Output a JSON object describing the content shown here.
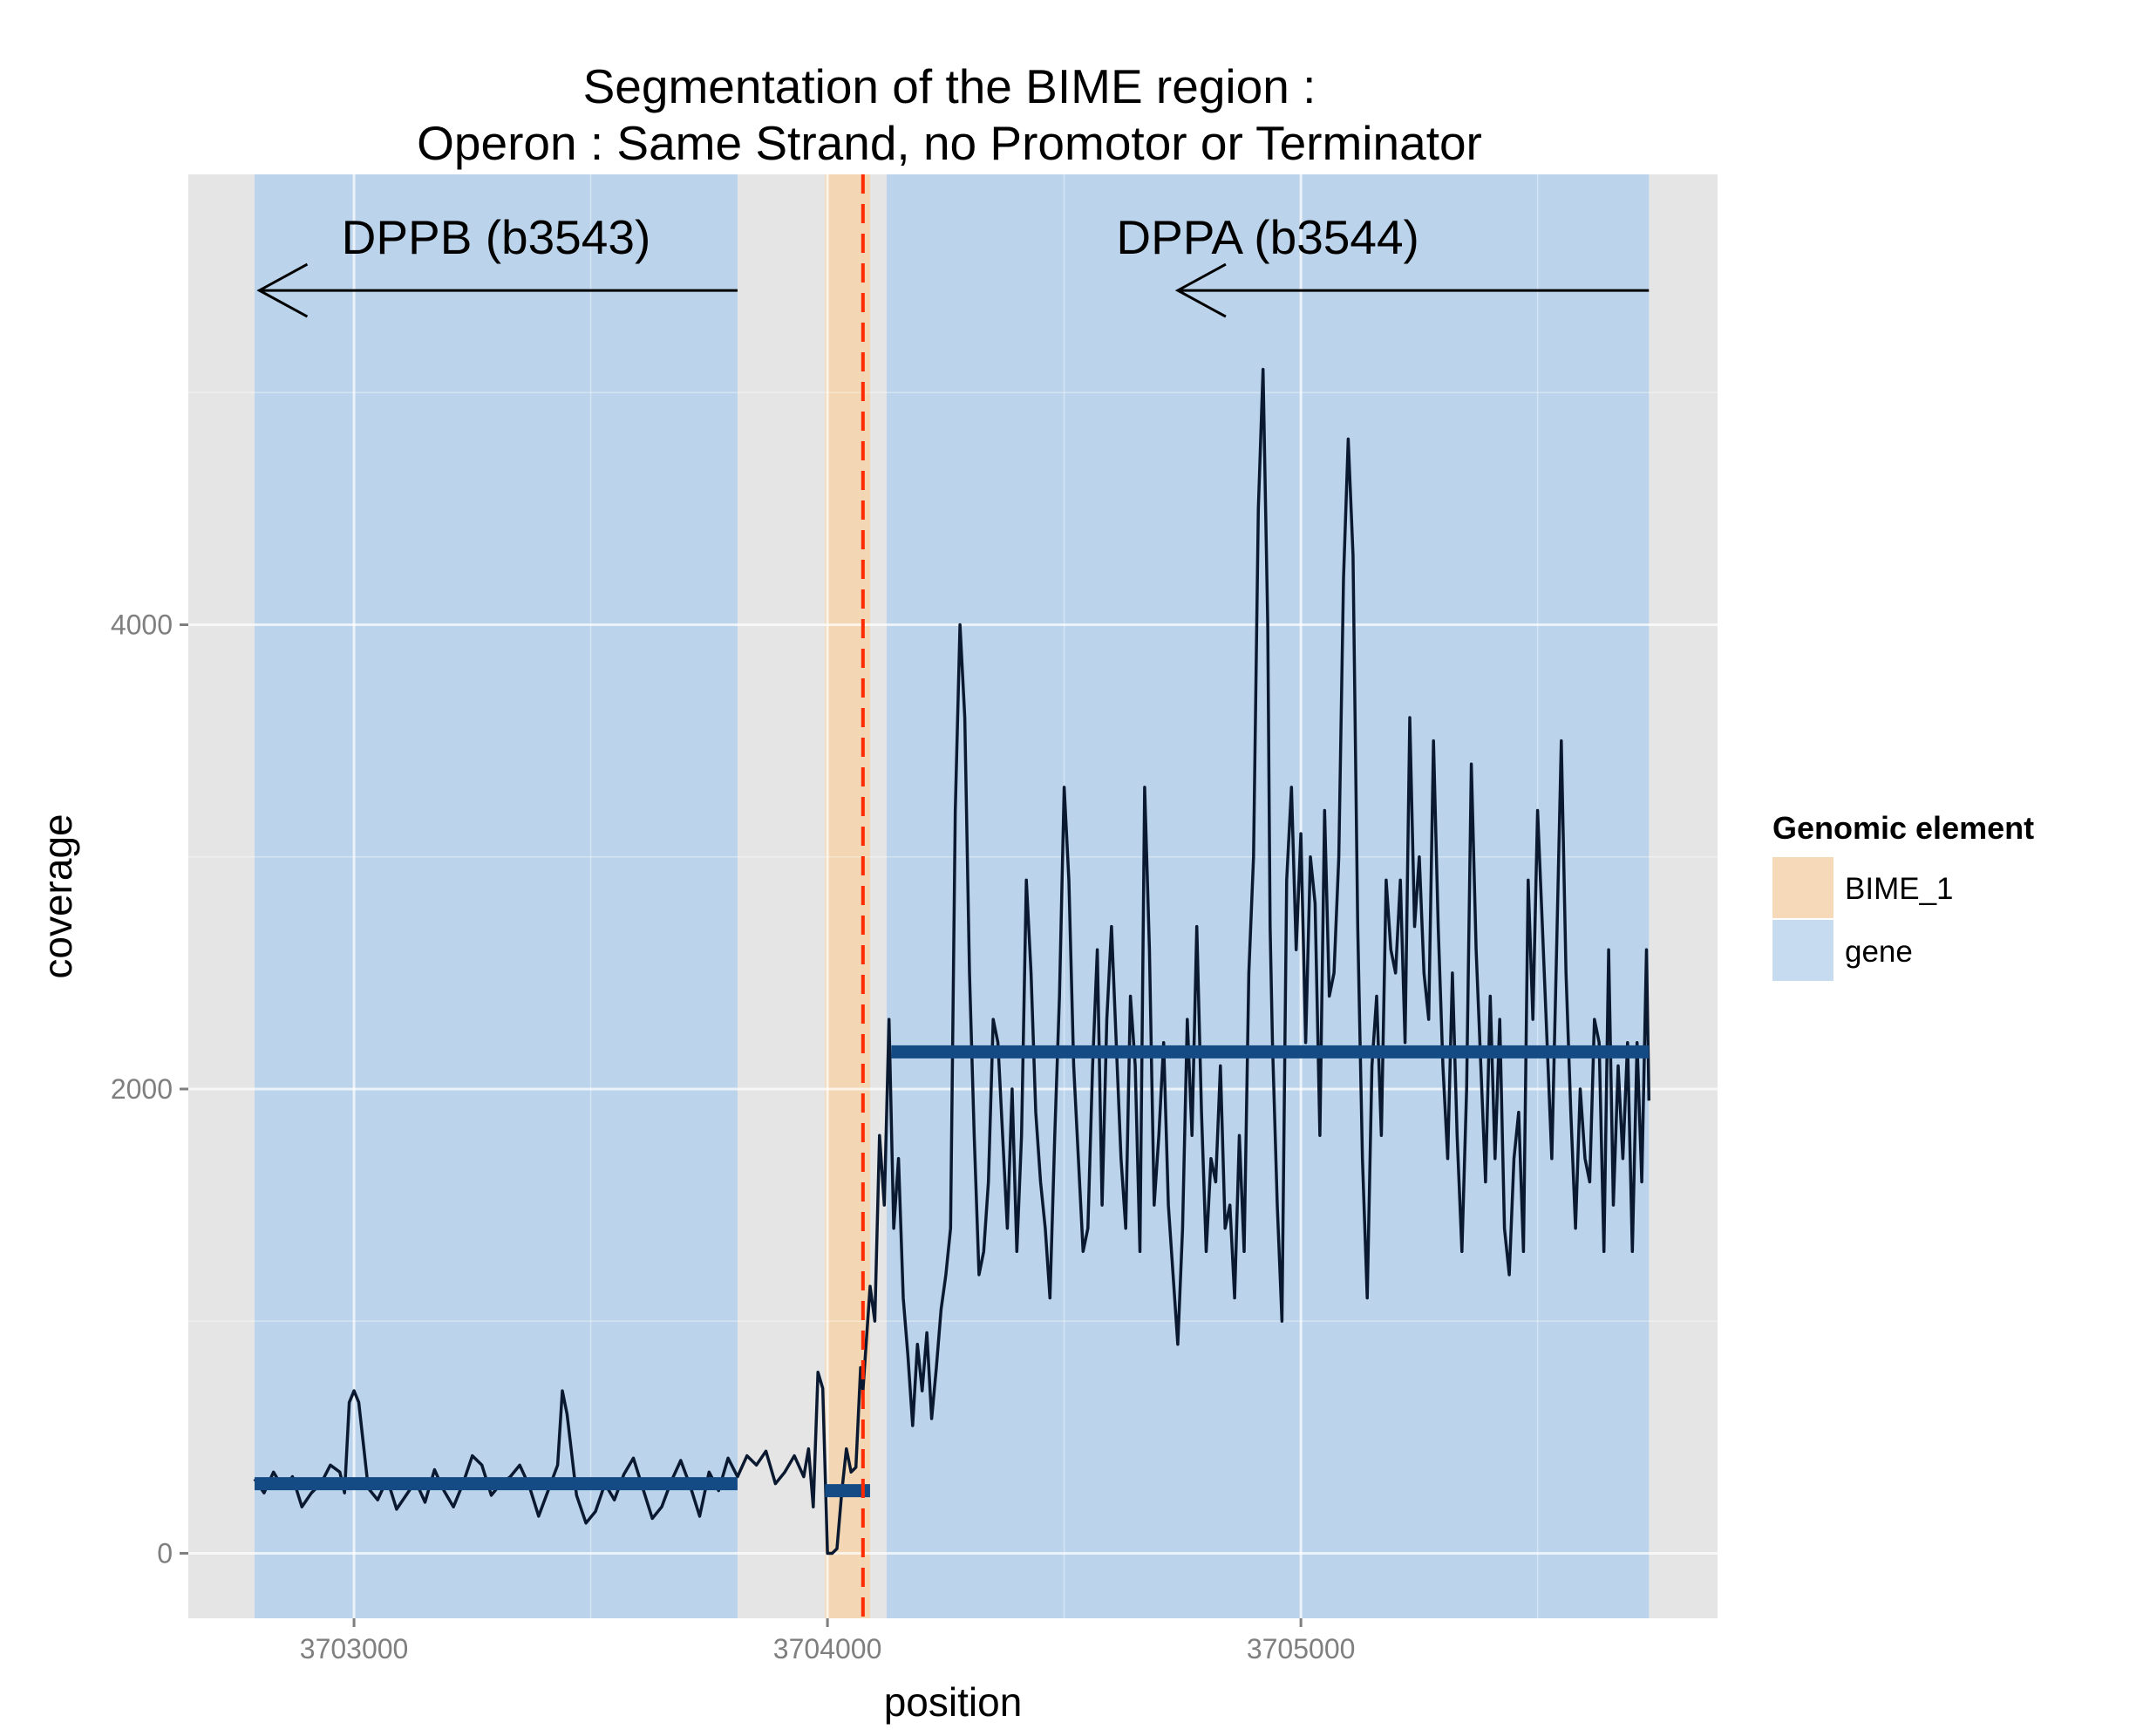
{
  "chart_data": {
    "type": "line",
    "title": "Segmentation of the BIME region :",
    "subtitle": "Operon : Same Strand, no Promotor or Terminator",
    "xlabel": "position",
    "ylabel": "coverage",
    "xlim": [
      3702650,
      3705880
    ],
    "ylim": [
      -280,
      5940
    ],
    "x_ticks": [
      {
        "value": 3703000,
        "label": "3703000"
      },
      {
        "value": 3704000,
        "label": "3704000"
      },
      {
        "value": 3705000,
        "label": "3705000"
      }
    ],
    "y_ticks": [
      {
        "value": 0,
        "label": "0"
      },
      {
        "value": 2000,
        "label": "2000"
      },
      {
        "value": 4000,
        "label": "4000"
      }
    ],
    "grid": true,
    "legend": {
      "title": "Genomic element",
      "position": "right",
      "items": [
        {
          "label": "BIME_1",
          "color": "#f5d9b8"
        },
        {
          "label": "gene",
          "color": "#c6dbef"
        }
      ]
    },
    "regions": [
      {
        "type": "gene",
        "x_start": 3702790,
        "x_end": 3703810,
        "color": "#bcd4eb"
      },
      {
        "type": "gene",
        "x_start": 3704125,
        "x_end": 3705735,
        "color": "#bcd4eb"
      },
      {
        "type": "BIME_1",
        "x_start": 3703995,
        "x_end": 3704090,
        "color": "#f3d6b3"
      }
    ],
    "genes": [
      {
        "label": "DPPB (b3543)",
        "arrow_from": 3703810,
        "arrow_to": 3702800,
        "label_x": 3703300,
        "y": 5440
      },
      {
        "label": "DPPA (b3544)",
        "arrow_from": 3705735,
        "arrow_to": 3704740,
        "label_x": 3704930,
        "y": 5440
      }
    ],
    "breakpoint": {
      "x": 3704075,
      "color": "#ff2a00"
    },
    "segments": [
      {
        "x_start": 3702790,
        "x_end": 3703810,
        "y": 300
      },
      {
        "x_start": 3703995,
        "x_end": 3704090,
        "y": 270
      },
      {
        "x_start": 3704135,
        "x_end": 3705735,
        "y": 2160
      }
    ],
    "series": [
      {
        "x": [
          3702790,
          3702810,
          3702830,
          3702850,
          3702870,
          3702890,
          3702910,
          3702930,
          3702950,
          3702970,
          3702980,
          3702990,
          3703000,
          3703010,
          3703030,
          3703050,
          3703070,
          3703090,
          3703110,
          3703130,
          3703150,
          3703170,
          3703190,
          3703210,
          3703230,
          3703250,
          3703270,
          3703290,
          3703310,
          3703330,
          3703350,
          3703370,
          3703390,
          3703410,
          3703430,
          3703440,
          3703450,
          3703470,
          3703490,
          3703510,
          3703530,
          3703550,
          3703570,
          3703590,
          3703610,
          3703630,
          3703650,
          3703670,
          3703690,
          3703710,
          3703730,
          3703750,
          3703770,
          3703790,
          3703810,
          3703830,
          3703850,
          3703870,
          3703890,
          3703910,
          3703930,
          3703950,
          3703960,
          3703970,
          3703980,
          3703990,
          3704000,
          3704010,
          3704020,
          3704030,
          3704040,
          3704050,
          3704060,
          3704070,
          3704075,
          3704080,
          3704090,
          3704100,
          3704110,
          3704120,
          3704130,
          3704140,
          3704150,
          3704160,
          3704170,
          3704180,
          3704190,
          3704200,
          3704210,
          3704220,
          3704230,
          3704240,
          3704250,
          3704260,
          3704270,
          3704280,
          3704290,
          3704300,
          3704310,
          3704320,
          3704330,
          3704340,
          3704350,
          3704360,
          3704370,
          3704380,
          3704390,
          3704400,
          3704410,
          3704420,
          3704430,
          3704440,
          3704450,
          3704460,
          3704470,
          3704480,
          3704490,
          3704500,
          3704510,
          3704520,
          3704530,
          3704540,
          3704550,
          3704560,
          3704570,
          3704580,
          3704590,
          3704600,
          3704610,
          3704620,
          3704630,
          3704640,
          3704650,
          3704660,
          3704670,
          3704680,
          3704690,
          3704700,
          3704710,
          3704720,
          3704730,
          3704740,
          3704750,
          3704760,
          3704770,
          3704780,
          3704790,
          3704800,
          3704810,
          3704820,
          3704830,
          3704840,
          3704850,
          3704860,
          3704870,
          3704880,
          3704890,
          3704900,
          3704910,
          3704920,
          3704930,
          3704935,
          3704940,
          3704950,
          3704960,
          3704970,
          3704980,
          3704990,
          3705000,
          3705010,
          3705020,
          3705030,
          3705040,
          3705050,
          3705060,
          3705070,
          3705080,
          3705090,
          3705100,
          3705110,
          3705120,
          3705130,
          3705140,
          3705150,
          3705160,
          3705170,
          3705180,
          3705190,
          3705200,
          3705210,
          3705220,
          3705230,
          3705240,
          3705250,
          3705260,
          3705270,
          3705280,
          3705290,
          3705300,
          3705310,
          3705320,
          3705330,
          3705340,
          3705350,
          3705360,
          3705370,
          3705380,
          3705390,
          3705400,
          3705410,
          3705420,
          3705430,
          3705440,
          3705450,
          3705460,
          3705470,
          3705480,
          3705490,
          3705500,
          3705510,
          3705520,
          3705530,
          3705540,
          3705550,
          3705560,
          3705570,
          3705580,
          3705590,
          3705600,
          3705610,
          3705620,
          3705630,
          3705640,
          3705650,
          3705660,
          3705670,
          3705680,
          3705690,
          3705700,
          3705710,
          3705720,
          3705730,
          3705735
        ],
        "y": [
          320,
          260,
          350,
          280,
          330,
          200,
          260,
          300,
          380,
          350,
          260,
          650,
          700,
          650,
          280,
          230,
          320,
          190,
          250,
          310,
          220,
          360,
          270,
          200,
          300,
          420,
          380,
          250,
          300,
          330,
          380,
          290,
          160,
          270,
          380,
          700,
          600,
          250,
          130,
          180,
          300,
          230,
          340,
          410,
          280,
          150,
          200,
          310,
          400,
          290,
          160,
          350,
          270,
          410,
          330,
          420,
          380,
          440,
          300,
          350,
          420,
          330,
          450,
          200,
          780,
          710,
          0,
          0,
          20,
          260,
          450,
          350,
          370,
          800,
          700,
          850,
          1150,
          1000,
          1800,
          1500,
          2300,
          1400,
          1700,
          1100,
          850,
          550,
          900,
          700,
          950,
          580,
          800,
          1050,
          1200,
          1400,
          3200,
          4000,
          3600,
          2500,
          1800,
          1200,
          1300,
          1600,
          2300,
          2200,
          1800,
          1400,
          2000,
          1300,
          1800,
          2900,
          2500,
          1900,
          1600,
          1400,
          1100,
          1800,
          2400,
          3300,
          2900,
          2100,
          1700,
          1300,
          1400,
          2100,
          2600,
          1500,
          2300,
          2700,
          2200,
          1700,
          1400,
          2400,
          2100,
          1300,
          3300,
          2600,
          1500,
          1800,
          2200,
          1500,
          1200,
          900,
          1400,
          2300,
          1800,
          2700,
          1900,
          1300,
          1700,
          1600,
          2100,
          1400,
          1500,
          1100,
          1800,
          1300,
          2500,
          3000,
          4500,
          5100,
          4000,
          2700,
          2200,
          1500,
          1000,
          2900,
          3300,
          2600,
          3100,
          2200,
          3000,
          2800,
          1800,
          3200,
          2400,
          2500,
          3000,
          4200,
          4800,
          4300,
          2700,
          1700,
          1100,
          2100,
          2400,
          1800,
          2900,
          2600,
          2500,
          2900,
          2200,
          3600,
          2700,
          3000,
          2500,
          2300,
          3500,
          2700,
          2100,
          1700,
          2500,
          1800,
          1300,
          2000,
          3400,
          2600,
          2100,
          1600,
          2400,
          1700,
          2300,
          1400,
          1200,
          1700,
          1900,
          1300,
          2900,
          2300,
          3200,
          2700,
          2200,
          1700,
          2600,
          3500,
          2500,
          1900,
          1400,
          2000,
          1700,
          1600,
          2300,
          2200,
          1300,
          2600,
          1500,
          2100,
          1700,
          2200,
          1300,
          2200,
          1600,
          2600,
          1950
        ]
      }
    ]
  }
}
